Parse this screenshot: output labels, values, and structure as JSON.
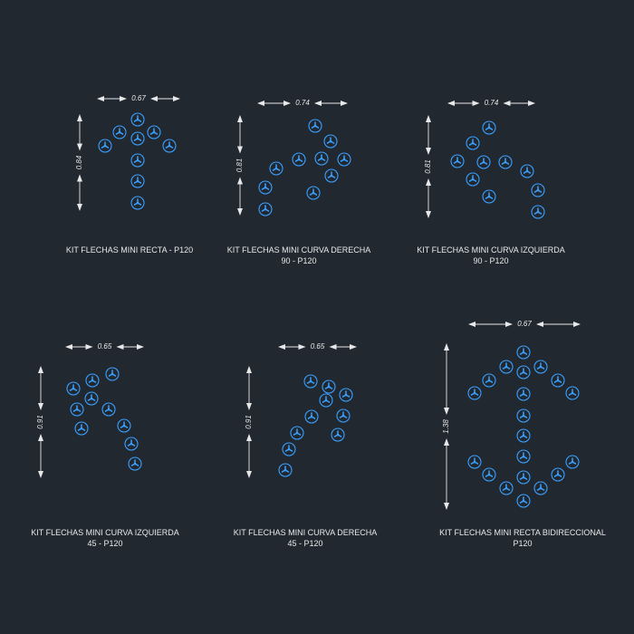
{
  "colors": {
    "background": "#212830",
    "symbol": "#3aa0ff",
    "dimension": "#e8e8e8"
  },
  "symbol_icon": "stud-marker-icon",
  "kits": [
    {
      "id": "recta",
      "line1": "KIT FLECHAS MINI RECTA -  P120",
      "line2": "",
      "width_dim": "0.67",
      "height_dim": "0.84"
    },
    {
      "id": "curva-derecha-90",
      "line1": "KIT FLECHAS MINI CURVA DERECHA",
      "line2": "90 -  P120",
      "width_dim": "0.74",
      "height_dim": "0.81"
    },
    {
      "id": "curva-izquierda-90",
      "line1": "KIT FLECHAS MINI CURVA IZQUIERDA",
      "line2": "90 -  P120",
      "width_dim": "0.74",
      "height_dim": "0.81"
    },
    {
      "id": "curva-izquierda-45",
      "line1": "KIT FLECHAS MINI CURVA IZQUIERDA",
      "line2": "45 -  P120",
      "width_dim": "0.65",
      "height_dim": "0.91"
    },
    {
      "id": "curva-derecha-45",
      "line1": "KIT FLECHAS MINI CURVA  DERECHA",
      "line2": "45 -  P120",
      "width_dim": "0.65",
      "height_dim": "0.91"
    },
    {
      "id": "recta-bidireccional",
      "line1": "KIT FLECHAS MINI RECTA BIDIRECCIONAL",
      "line2": "P120",
      "width_dim": "0.67",
      "height_dim": "1.38"
    }
  ]
}
